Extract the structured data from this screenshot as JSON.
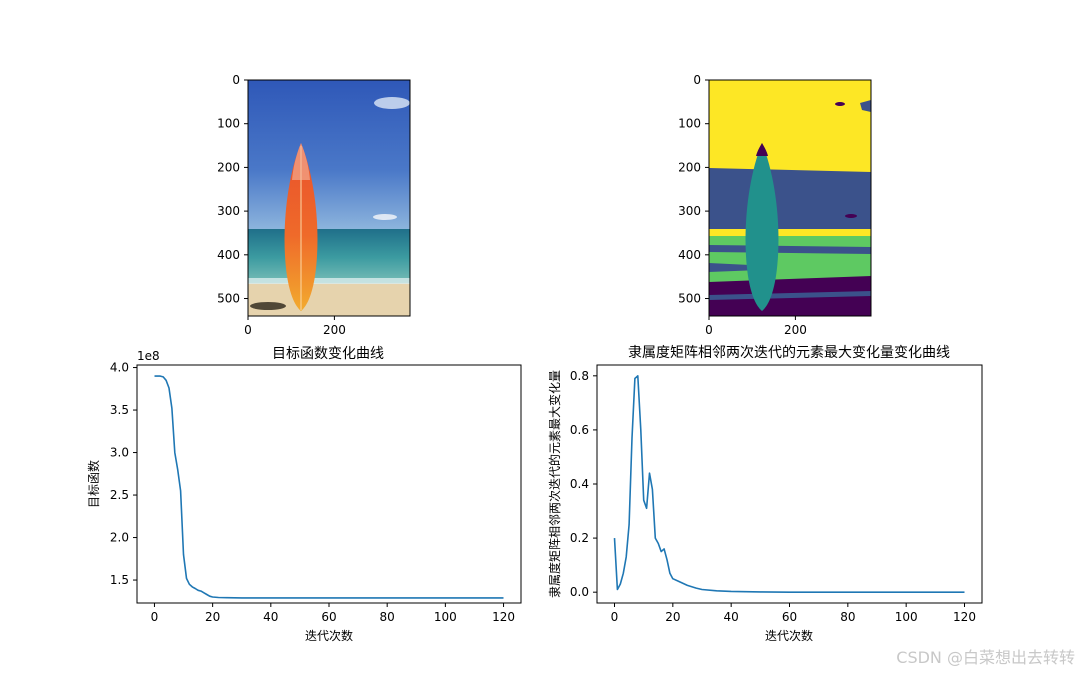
{
  "watermark": "CSDN @白菜想出去转转",
  "images": [
    {
      "axis": {
        "xticks": [
          0,
          200
        ],
        "yticks": [
          0,
          100,
          200,
          300,
          400,
          500
        ],
        "xlim": [
          0,
          375
        ],
        "ylim": [
          0,
          540
        ]
      }
    },
    {
      "axis": {
        "xticks": [
          0,
          200
        ],
        "yticks": [
          0,
          100,
          200,
          300,
          400,
          500
        ],
        "xlim": [
          0,
          375
        ],
        "ylim": [
          0,
          540
        ]
      },
      "palette": [
        "#440154",
        "#3b528b",
        "#21918c",
        "#5ec962",
        "#fde725"
      ]
    }
  ],
  "chart_data": [
    {
      "type": "line",
      "title": "目标函数变化曲线",
      "xlabel": "迭代次数",
      "ylabel": "目标函数",
      "offset_label": "1e8",
      "xlim": [
        -6,
        126
      ],
      "ylim": [
        1.23,
        4.03
      ],
      "xticks": [
        0,
        20,
        40,
        60,
        80,
        100,
        120
      ],
      "yticks": [
        1.5,
        2.0,
        2.5,
        3.0,
        3.5,
        4.0
      ],
      "ytick_labels": [
        "1.5",
        "2.0",
        "2.5",
        "3.0",
        "3.5",
        "4.0"
      ],
      "color": "#1f77b4",
      "series": [
        {
          "x": [
            0,
            1,
            2,
            3,
            4,
            5,
            6,
            7,
            8,
            9,
            10,
            11,
            12,
            13,
            14,
            15,
            16,
            17,
            18,
            19,
            20,
            22,
            25,
            30,
            40,
            60,
            80,
            100,
            120
          ],
          "y": [
            3.9,
            3.9,
            3.9,
            3.89,
            3.85,
            3.76,
            3.52,
            3.0,
            2.8,
            2.55,
            1.8,
            1.52,
            1.45,
            1.42,
            1.4,
            1.38,
            1.37,
            1.35,
            1.33,
            1.31,
            1.3,
            1.295,
            1.292,
            1.29,
            1.29,
            1.29,
            1.29,
            1.29,
            1.29
          ]
        }
      ]
    },
    {
      "type": "line",
      "title": "隶属度矩阵相邻两次迭代的元素最大变化量变化曲线",
      "xlabel": "迭代次数",
      "ylabel": "隶属度矩阵相邻两次迭代的元素最大变化量",
      "xlim": [
        -6,
        126
      ],
      "ylim": [
        -0.04,
        0.84
      ],
      "xticks": [
        0,
        20,
        40,
        60,
        80,
        100,
        120
      ],
      "yticks": [
        0.0,
        0.2,
        0.4,
        0.6,
        0.8
      ],
      "ytick_labels": [
        "0.0",
        "0.2",
        "0.4",
        "0.6",
        "0.8"
      ],
      "color": "#1f77b4",
      "series": [
        {
          "x": [
            0,
            1,
            2,
            3,
            4,
            5,
            6,
            7,
            8,
            9,
            10,
            11,
            12,
            13,
            14,
            15,
            16,
            17,
            18,
            19,
            20,
            22,
            25,
            28,
            30,
            35,
            40,
            50,
            60,
            80,
            100,
            120
          ],
          "y": [
            0.2,
            0.01,
            0.03,
            0.07,
            0.13,
            0.25,
            0.57,
            0.79,
            0.8,
            0.6,
            0.34,
            0.31,
            0.44,
            0.38,
            0.2,
            0.18,
            0.15,
            0.16,
            0.12,
            0.07,
            0.05,
            0.04,
            0.025,
            0.015,
            0.01,
            0.005,
            0.003,
            0.001,
            0.0,
            0.0,
            0.0,
            0.0
          ]
        }
      ]
    }
  ]
}
